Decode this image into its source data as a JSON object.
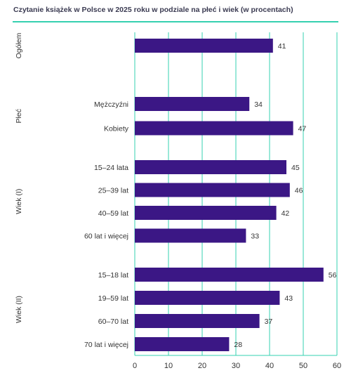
{
  "colors": {
    "bar": "#3b1785",
    "grid": "#35d0b0",
    "rule": "#35d0b0",
    "text": "#333333"
  },
  "chart_data": {
    "type": "bar",
    "orientation": "horizontal",
    "title": "Czytanie książek w Polsce w 2025 roku w podziale na płeć i wiek  (w procentach)",
    "xlim": [
      0,
      60
    ],
    "xticks": [
      0,
      10,
      20,
      30,
      40,
      50,
      60
    ],
    "grid": true,
    "groups": [
      {
        "name": "Ogółem",
        "categories": [
          ""
        ],
        "values": [
          41
        ]
      },
      {
        "name": "Płeć",
        "categories": [
          "Mężczyźni",
          "Kobiety"
        ],
        "values": [
          34,
          47
        ]
      },
      {
        "name": "Wiek (I)",
        "categories": [
          "15–24 lata",
          "25–39 lat",
          "40–59 lat",
          "60 lat i więcej"
        ],
        "values": [
          45,
          46,
          42,
          33
        ]
      },
      {
        "name": "Wiek (II)",
        "categories": [
          "15–18 lat",
          "19–59 lat",
          "60–70 lat",
          "70 lat i więcej"
        ],
        "values": [
          56,
          43,
          37,
          28
        ]
      }
    ]
  }
}
